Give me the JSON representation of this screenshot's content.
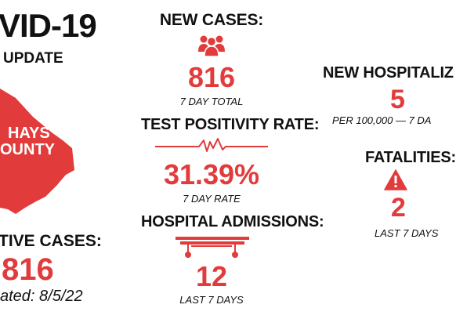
{
  "colors": {
    "accent": "#e23b3b",
    "text": "#111111",
    "background": "#ffffff"
  },
  "header": {
    "title": "VID-19",
    "subtitle": "UPDATE"
  },
  "county": {
    "label_line1": "HAYS",
    "label_line2": "OUNTY"
  },
  "active_cases": {
    "heading": "TIVE CASES:",
    "value": "816",
    "updated": "ated: 8/5/22"
  },
  "new_cases": {
    "heading": "NEW CASES:",
    "value": "816",
    "note": "7 DAY TOTAL",
    "icon": "people-icon"
  },
  "test_positivity": {
    "heading": "TEST POSITIVITY RATE:",
    "value": "31.39%",
    "note": "7 DAY RATE",
    "icon": "ekg-line-icon"
  },
  "hospital_admissions": {
    "heading": "HOSPITAL ADMISSIONS:",
    "value": "12",
    "note": "LAST 7 DAYS",
    "icon": "hospital-bed-icon"
  },
  "new_hospitalizations": {
    "heading": "NEW HOSPITALIZ",
    "value": "5",
    "note": "PER 100,000 — 7 DA"
  },
  "fatalities": {
    "heading": "FATALITIES:",
    "value": "2",
    "note": "LAST 7 DAYS",
    "icon": "warning-icon"
  }
}
